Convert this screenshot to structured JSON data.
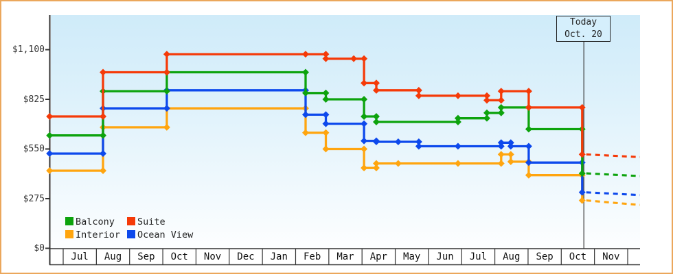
{
  "chart_data": {
    "type": "step-line",
    "description": "Cruise cabin price history by category with today marker and dashed forecast",
    "x_unit": "months_from_first_july",
    "y_axis": {
      "tick_values": [
        0,
        275,
        550,
        825,
        1100
      ],
      "tick_labels": [
        "$0",
        "$275",
        "$550",
        "$825",
        "$1,100"
      ],
      "min": 0,
      "max": 1100
    },
    "x_axis": {
      "month_labels": [
        "Jul",
        "Aug",
        "Sep",
        "Oct",
        "Nov",
        "Dec",
        "Jan",
        "Feb",
        "Mar",
        "Apr",
        "May",
        "Jun",
        "Jul",
        "Aug",
        "Sep",
        "Oct",
        "Nov"
      ]
    },
    "today_marker": {
      "line1": "Today",
      "line2": "Oct. 20",
      "t": 15.68
    },
    "series": [
      {
        "name": "Interior",
        "color": "#ffa50f",
        "points": [
          [
            -0.41,
            430
          ],
          [
            1.2,
            670
          ],
          [
            3.12,
            775
          ],
          [
            7.3,
            640
          ],
          [
            7.91,
            550
          ],
          [
            9.06,
            445
          ],
          [
            9.43,
            470
          ],
          [
            10.09,
            470
          ],
          [
            11.89,
            470
          ],
          [
            13.19,
            520
          ],
          [
            13.48,
            480
          ],
          [
            14.02,
            405
          ],
          [
            15.63,
            265
          ]
        ],
        "forecast": [
          [
            15.63,
            265
          ],
          [
            17.37,
            240
          ]
        ]
      },
      {
        "name": "Ocean View",
        "color": "#0d49ec",
        "points": [
          [
            -0.41,
            525
          ],
          [
            1.2,
            775
          ],
          [
            3.12,
            875
          ],
          [
            7.3,
            740
          ],
          [
            7.91,
            690
          ],
          [
            9.06,
            595
          ],
          [
            9.43,
            590
          ],
          [
            10.09,
            590
          ],
          [
            10.71,
            565
          ],
          [
            11.89,
            565
          ],
          [
            13.19,
            585
          ],
          [
            13.48,
            565
          ],
          [
            14.02,
            475
          ],
          [
            15.63,
            310
          ]
        ],
        "forecast": [
          [
            15.63,
            310
          ],
          [
            17.37,
            295
          ]
        ]
      },
      {
        "name": "Balcony",
        "color": "#0da30d",
        "points": [
          [
            -0.41,
            625
          ],
          [
            1.2,
            870
          ],
          [
            3.12,
            975
          ],
          [
            7.3,
            860
          ],
          [
            7.91,
            825
          ],
          [
            9.06,
            730
          ],
          [
            9.43,
            700
          ],
          [
            11.89,
            720
          ],
          [
            12.76,
            750
          ],
          [
            13.19,
            780
          ],
          [
            14.02,
            660
          ],
          [
            15.63,
            415
          ]
        ],
        "forecast": [
          [
            15.63,
            415
          ],
          [
            17.37,
            400
          ]
        ]
      },
      {
        "name": "Suite",
        "color": "#f53a08",
        "points": [
          [
            -0.41,
            730
          ],
          [
            1.2,
            975
          ],
          [
            3.12,
            1075
          ],
          [
            7.3,
            1075
          ],
          [
            7.91,
            1050
          ],
          [
            8.75,
            1050
          ],
          [
            9.06,
            915
          ],
          [
            9.43,
            875
          ],
          [
            10.71,
            845
          ],
          [
            11.89,
            845
          ],
          [
            12.76,
            820
          ],
          [
            13.19,
            870
          ],
          [
            14.02,
            780
          ],
          [
            15.63,
            520
          ]
        ],
        "forecast": [
          [
            15.63,
            520
          ],
          [
            17.37,
            505
          ]
        ]
      }
    ],
    "legend": [
      {
        "label": "Balcony",
        "color": "#0da30d"
      },
      {
        "label": "Suite",
        "color": "#f53a08"
      },
      {
        "label": "Interior",
        "color": "#ffa50f"
      },
      {
        "label": "Ocean View",
        "color": "#0d49ec"
      }
    ]
  }
}
